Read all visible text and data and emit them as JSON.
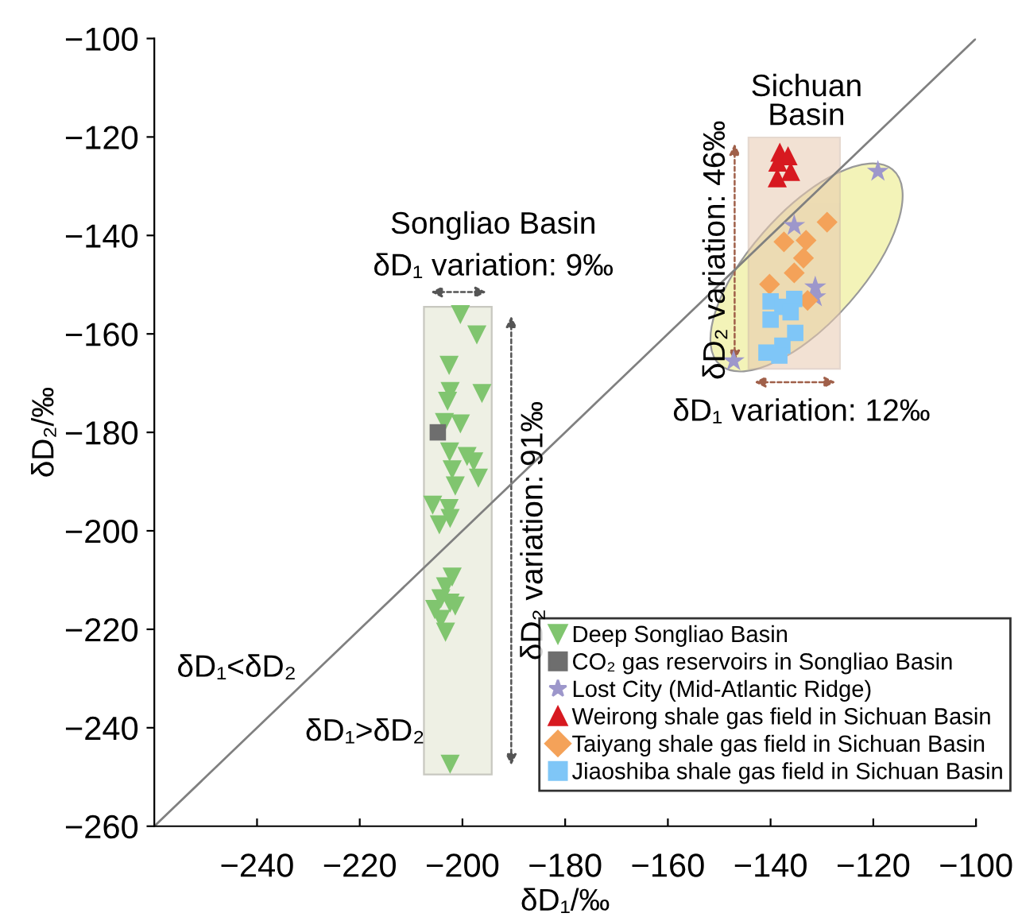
{
  "chart_data": {
    "type": "scatter",
    "xlabel": "δD₁/‰",
    "ylabel": "δD₂/‰",
    "xlim": [
      -260,
      -100
    ],
    "ylim": [
      -260,
      -100
    ],
    "xticks": [
      -240,
      -220,
      -200,
      -180,
      -160,
      -140,
      -120,
      -100
    ],
    "yticks": [
      -260,
      -240,
      -220,
      -200,
      -180,
      -160,
      -140,
      -120,
      -100
    ],
    "grid": false,
    "legend": "bottom right",
    "series": [
      {
        "name": "Deep Songliao Basin",
        "color": "#80c56f",
        "marker": "triangle_down",
        "x": [
          -200.4,
          -197.2,
          -202.6,
          -196.2,
          -202.4,
          -202.9,
          -203.5,
          -200.4,
          -202.5,
          null,
          -202.0,
          -199.1,
          -197.8,
          -196.9,
          -201.4,
          -205.8,
          -202.6,
          -204.5,
          -202.4,
          -202.0,
          -203.3,
          -204.2,
          -202.4,
          -201.4,
          -205.4,
          -204.2,
          -203.3,
          -202.4
        ],
        "values": [
          -156.1,
          -160.2,
          -166.4,
          -172.1,
          -171.7,
          -173.7,
          -178.0,
          -178.3,
          -184.0,
          null,
          -187.6,
          -184.9,
          -186.0,
          -189.3,
          -190.9,
          -194.8,
          -195.5,
          -198.8,
          -197.5,
          -209.4,
          -211.4,
          -213.8,
          -214.7,
          -215.3,
          -216.0,
          -218.0,
          -220.6,
          -247.4
        ]
      },
      {
        "name": "CO₂ gas reservoirs in Songliao Basin",
        "color": "#6e6e6e",
        "marker": "square",
        "x": [
          -204.8
        ],
        "values": [
          -180.0
        ]
      },
      {
        "name": "Lost City (Mid-Atlantic Ridge)",
        "color": "#9d97cb",
        "marker": "star",
        "x": [
          -119.1,
          -135.4,
          -131.3,
          -131.3,
          -147.2
        ],
        "values": [
          -127.0,
          -138.0,
          -150.5,
          -152.5,
          -165.5
        ]
      },
      {
        "name": "Weirong shale gas field in Sichuan Basin",
        "color": "#d71920",
        "marker": "triangle",
        "x": [
          -138.2,
          -136.6,
          -138.6,
          -136.1,
          -138.7
        ],
        "values": [
          -123.1,
          -123.8,
          -125.1,
          -127.0,
          -128.3
        ]
      },
      {
        "name": "Taiyang shale gas field in Sichuan Basin",
        "color": "#f4a259",
        "marker": "diamond",
        "x": [
          -129.0,
          -137.4,
          -133.1,
          -133.6,
          -135.4,
          -140.2,
          -132.8,
          null
        ],
        "values": [
          -137.3,
          -141.3,
          -141.0,
          -144.6,
          -147.6,
          -149.9,
          -153.2,
          null
        ]
      },
      {
        "name": "Jiaoshiba shale gas field in Sichuan Basin",
        "color": "#7fc6f7",
        "marker": "square",
        "x": [
          -140.0,
          -137.7,
          -135.4,
          -140.0,
          null,
          null,
          -135.2,
          -137.7,
          -140.8,
          -138.3,
          -136.1
        ],
        "values": [
          -153.4,
          -154.5,
          -152.9,
          -157.1,
          null,
          null,
          -159.8,
          -162.4,
          -163.8,
          -164.4,
          -155.6
        ]
      },
      {
        "type": "line",
        "color": "#808080",
        "marker": "none",
        "x": [
          -260,
          -100
        ],
        "values": [
          -260,
          -100
        ]
      }
    ],
    "annotations": [
      "Songliao Basin",
      "δD₁ variation: 9‰",
      "δD₂ variation: 91‰",
      "Sichuan\nBasin",
      "δD₂ variation: 46‰",
      "δD₁ variation: 12‰",
      "δD₁<δD₂",
      "δD₁>δD₂"
    ]
  }
}
